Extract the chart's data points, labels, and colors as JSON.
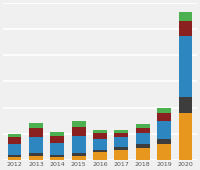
{
  "years": [
    "2012",
    "2013",
    "2014",
    "2015",
    "2016",
    "2017",
    "2018",
    "2019",
    "2020"
  ],
  "segments": {
    "orange": [
      1.5,
      2.0,
      1.5,
      2.0,
      3.5,
      4.5,
      5.5,
      7.0,
      21.0
    ],
    "darkgray": [
      0.8,
      1.2,
      0.8,
      1.2,
      1.0,
      1.2,
      1.5,
      2.5,
      7.0
    ],
    "blue": [
      5.0,
      7.0,
      5.5,
      7.5,
      5.0,
      4.5,
      5.0,
      8.0,
      27.0
    ],
    "darkred": [
      3.0,
      4.0,
      3.0,
      4.0,
      2.5,
      2.0,
      2.5,
      3.5,
      7.0
    ],
    "green": [
      1.5,
      2.5,
      1.5,
      2.5,
      1.5,
      1.0,
      1.5,
      2.0,
      4.0
    ]
  },
  "colors": {
    "orange": "#E8971E",
    "darkgray": "#3D3D3D",
    "blue": "#2E86C1",
    "darkred": "#8B2020",
    "green": "#4CAF50"
  },
  "background_color": "#F0F0F0",
  "grid_color": "#FFFFFF",
  "ylim": [
    0,
    70
  ],
  "bar_width": 0.65
}
